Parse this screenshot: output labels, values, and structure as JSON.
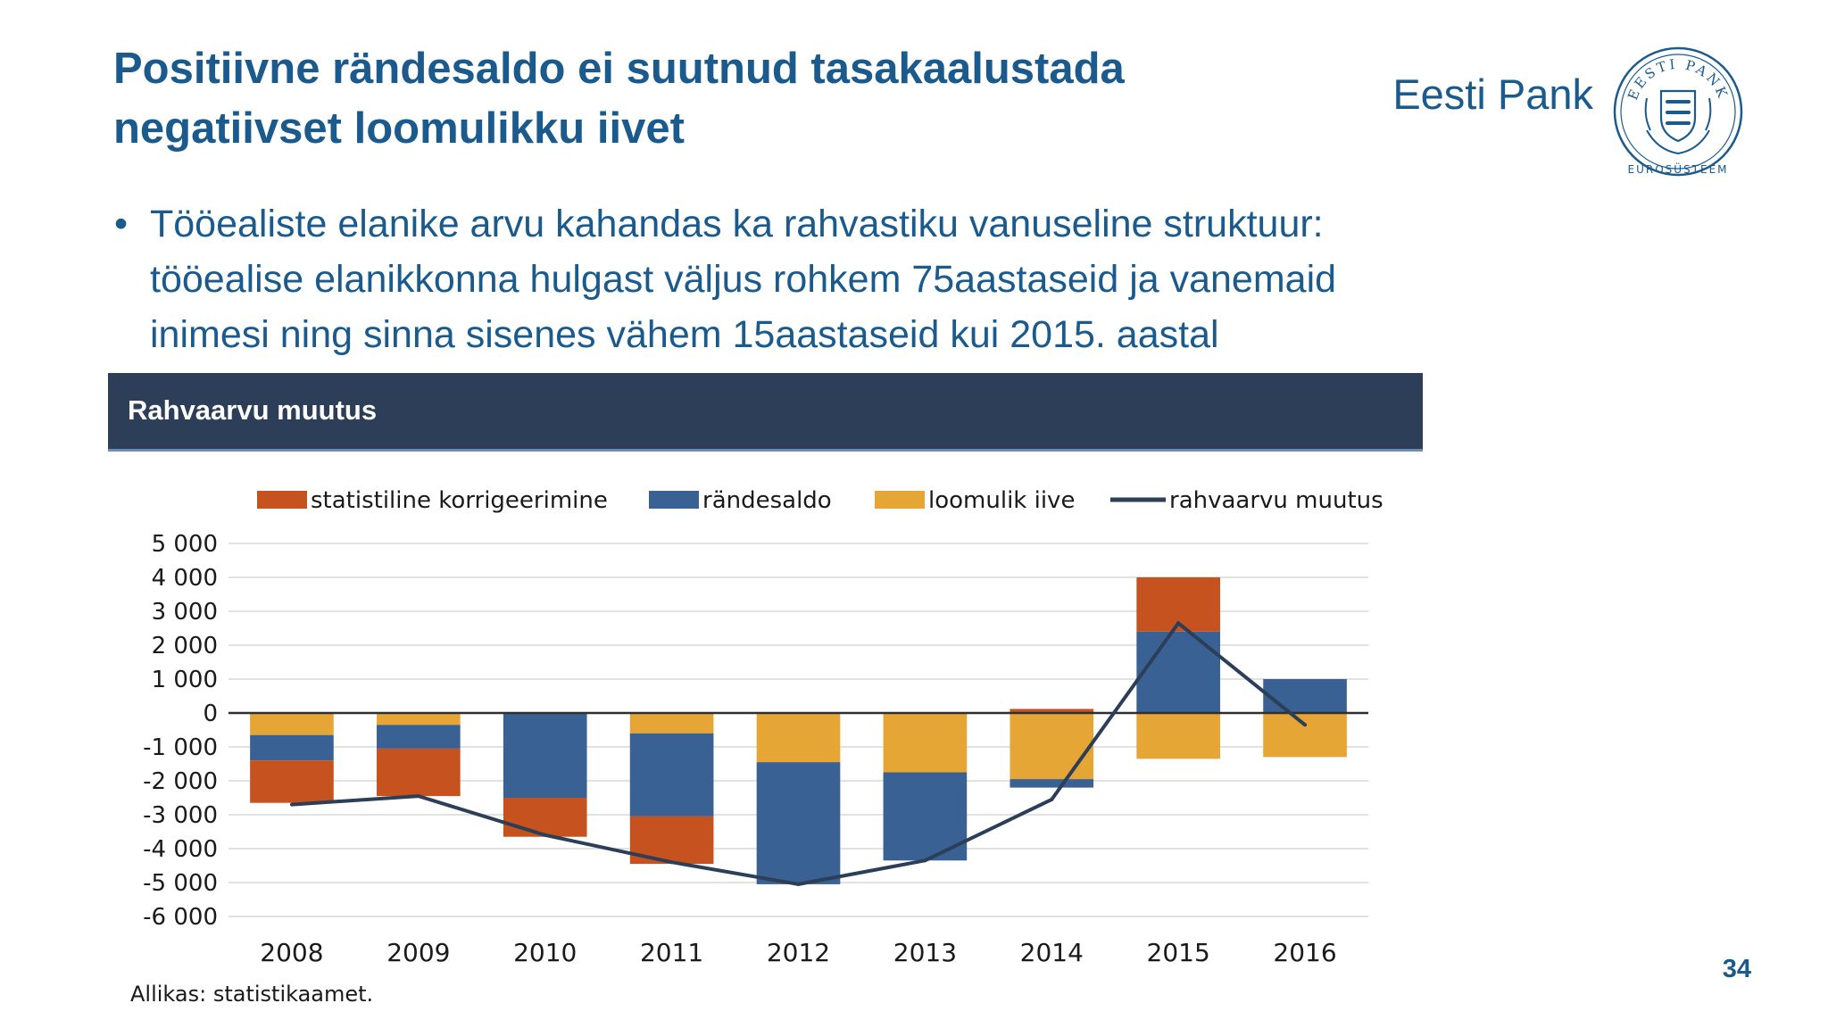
{
  "slide": {
    "title_lines": [
      "Positiivne rändesaldo ei suutnud tasakaalustada",
      "negatiivset loomulikku iivet"
    ],
    "bullet_lines": [
      "Tööealiste elanike arvu kahandas ka rahvastiku vanuseline struktuur:",
      "tööealise elanikkonna hulgast väljus rohkem 75aastaseid ja vanemaid",
      "inimesi ning sinna sisenes vähem 15aastaseid kui 2015. aastal"
    ],
    "bullet_glyph": "•",
    "page_number": "34"
  },
  "brand": {
    "name": "Eesti Pank",
    "seal_top_text": "EESTI PANK",
    "seal_bottom_text": "EUROSÜSTEEM",
    "seal_icon": "coat-of-arms-three-lions-icon",
    "color": "#1b5a8c"
  },
  "chart_data": {
    "type": "bar",
    "stacked": true,
    "title": "Rahvaarvu muutus",
    "categories": [
      "2008",
      "2009",
      "2010",
      "2011",
      "2012",
      "2013",
      "2014",
      "2015",
      "2016"
    ],
    "series": [
      {
        "name": "loomulik iive",
        "color": "#e6a635",
        "kind": "bar",
        "values": [
          -650,
          -350,
          0,
          -600,
          -1450,
          -1750,
          -1950,
          -1350,
          -1300
        ]
      },
      {
        "name": "rändesaldo",
        "color": "#3a6194",
        "kind": "bar",
        "values": [
          -750,
          -700,
          -2500,
          -2450,
          -3600,
          -2600,
          -250,
          2400,
          1000
        ]
      },
      {
        "name": "statistiline korrigeerimine",
        "color": "#c6531f",
        "kind": "bar",
        "values": [
          -1250,
          -1400,
          -1150,
          -1400,
          0,
          0,
          120,
          1600,
          0
        ]
      },
      {
        "name": "rahvaarvu muutus",
        "color": "#2c3e58",
        "kind": "line",
        "values": [
          -2700,
          -2450,
          -3600,
          -4400,
          -5050,
          -4350,
          -2550,
          2650,
          -350
        ]
      }
    ],
    "legend_order": [
      "statistiline korrigeerimine",
      "rändesaldo",
      "loomulik iive",
      "rahvaarvu muutus"
    ],
    "legend_position": "top",
    "ylim": [
      -6000,
      5000
    ],
    "yticks": [
      5000,
      4000,
      3000,
      2000,
      1000,
      0,
      -1000,
      -2000,
      -3000,
      -4000,
      -5000,
      -6000
    ],
    "ytick_labels": [
      "5 000",
      "4 000",
      "3 000",
      "2 000",
      "1 000",
      "0",
      "-1 000",
      "-2 000",
      "-3 000",
      "-4 000",
      "-5 000",
      "-6 000"
    ],
    "grid": true,
    "grid_color": "#d9d9d9",
    "header_color": "#2c3e58",
    "source": "Allikas: statistikaamet."
  }
}
